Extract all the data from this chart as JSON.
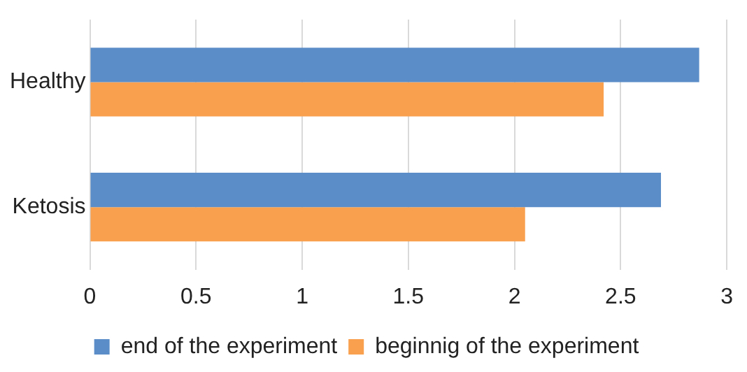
{
  "chart_data": {
    "type": "bar",
    "orientation": "horizontal",
    "categories": [
      "Healthy",
      "Ketosis"
    ],
    "series": [
      {
        "name": "end of the experiment",
        "color": "#5b8dc8",
        "values": [
          2.87,
          2.69
        ]
      },
      {
        "name": "beginnig of the experiment",
        "color": "#f9a04f",
        "values": [
          2.42,
          2.05
        ]
      }
    ],
    "xlim": [
      0,
      3
    ],
    "xticks": [
      0,
      0.5,
      1,
      1.5,
      2,
      2.5,
      3
    ],
    "grid": "x",
    "legend": "bottom"
  }
}
